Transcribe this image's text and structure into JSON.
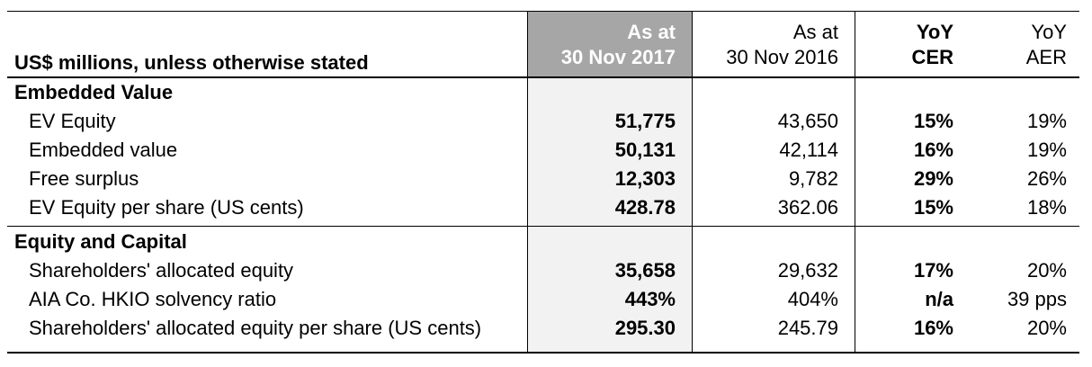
{
  "table": {
    "header": {
      "label": "US$ millions, unless otherwise stated",
      "col1_line1": "As at",
      "col1_line2": "30 Nov 2017",
      "col2_line1": "As at",
      "col2_line2": "30 Nov 2016",
      "col3_line1": "YoY",
      "col3_line2": "CER",
      "col4_line1": "YoY",
      "col4_line2": "AER"
    },
    "sections": [
      {
        "title": "Embedded Value",
        "rows": [
          {
            "label": "EV Equity",
            "v2017": "51,775",
            "v2016": "43,650",
            "cer": "15%",
            "aer": "19%"
          },
          {
            "label": "Embedded value",
            "v2017": "50,131",
            "v2016": "42,114",
            "cer": "16%",
            "aer": "19%"
          },
          {
            "label": "Free surplus",
            "v2017": "12,303",
            "v2016": "9,782",
            "cer": "29%",
            "aer": "26%"
          },
          {
            "label": "EV Equity per share (US cents)",
            "v2017": "428.78",
            "v2016": "362.06",
            "cer": "15%",
            "aer": "18%"
          }
        ]
      },
      {
        "title": "Equity and Capital",
        "rows": [
          {
            "label": "Shareholders' allocated equity",
            "v2017": "35,658",
            "v2016": "29,632",
            "cer": "17%",
            "aer": "20%"
          },
          {
            "label": "AIA Co. HKIO solvency ratio",
            "v2017": "443%",
            "v2016": "404%",
            "cer": "n/a",
            "aer": "39 pps"
          },
          {
            "label": "Shareholders' allocated equity per share (US cents)",
            "v2017": "295.30",
            "v2016": "245.79",
            "cer": "16%",
            "aer": "20%"
          }
        ]
      }
    ]
  }
}
